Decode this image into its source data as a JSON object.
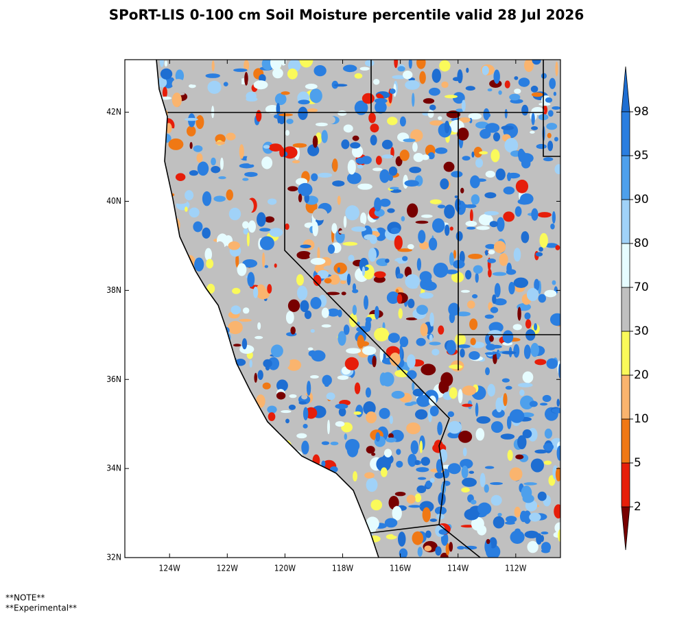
{
  "title": "SPoRT-LIS 0-100 cm Soil Moisture percentile valid 28 Jul 2026",
  "map": {
    "xlim": [
      -125.55,
      -110.45
    ],
    "ylim": [
      32,
      43.18
    ],
    "xticks": [
      {
        "value": -124,
        "label": "124W"
      },
      {
        "value": -122,
        "label": "122W"
      },
      {
        "value": -120,
        "label": "120W"
      },
      {
        "value": -118,
        "label": "118W"
      },
      {
        "value": -116,
        "label": "116W"
      },
      {
        "value": -114,
        "label": "114W"
      },
      {
        "value": -112,
        "label": "112W"
      }
    ],
    "yticks": [
      {
        "value": 32,
        "label": "32N"
      },
      {
        "value": 34,
        "label": "34N"
      },
      {
        "value": 36,
        "label": "36N"
      },
      {
        "value": 38,
        "label": "38N"
      },
      {
        "value": 40,
        "label": "40N"
      },
      {
        "value": 42,
        "label": "42N"
      }
    ]
  },
  "colorbar": {
    "levels": [
      2,
      5,
      10,
      20,
      30,
      70,
      80,
      90,
      95,
      98
    ],
    "colors": [
      "#780000",
      "#e61e0a",
      "#f07814",
      "#fab46e",
      "#fafa5a",
      "#c0c0c0",
      "#e6fcff",
      "#a0d2f8",
      "#4ea0ec",
      "#2a7ee0",
      "#1e6ed2"
    ]
  },
  "notes": [
    "**NOTE**",
    "**Experimental**"
  ]
}
